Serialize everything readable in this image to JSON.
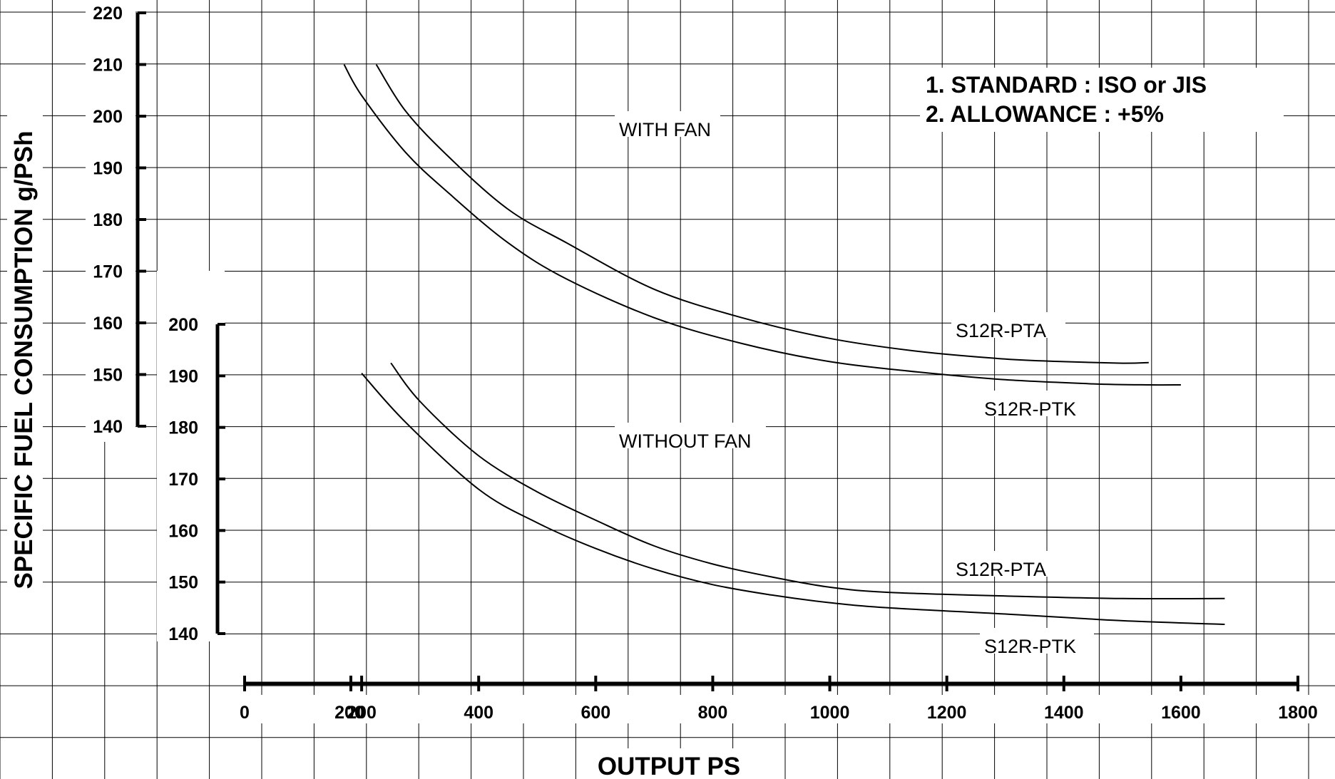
{
  "chart_data": {
    "type": "line",
    "xlabel": "OUTPUT PS",
    "ylabel": "SPECIFIC FUEL CONSUMPTION g/PSh",
    "xlim": [
      0,
      1800
    ],
    "x_ticks": [
      0,
      200,
      400,
      600,
      800,
      1000,
      1200,
      1400,
      1600,
      1800
    ],
    "x_tick_labels": [
      "0",
      "200",
      "400",
      "600",
      "800",
      "1000",
      "1200",
      "1400",
      "1600",
      "1800"
    ],
    "x_overlap_label": "200",
    "upper_axis": {
      "ylim": [
        140,
        220
      ],
      "ticks": [
        140,
        150,
        160,
        170,
        180,
        190,
        200,
        210,
        220
      ]
    },
    "lower_axis": {
      "ylim": [
        140,
        200
      ],
      "ticks": [
        140,
        150,
        160,
        170,
        180,
        190,
        200
      ]
    },
    "grid": true,
    "groups": [
      {
        "name": "WITH FAN",
        "axis": "upper",
        "series": [
          {
            "name": "S12R-PTA",
            "x": [
              225,
              275,
              350,
              450,
              550,
              700,
              850,
              1000,
              1150,
              1300,
              1400,
              1500,
              1545
            ],
            "y": [
              210,
              201,
              192,
              182,
              175.5,
              166.5,
              161,
              157,
              154.5,
              153,
              152.5,
              152.2,
              152.3
            ]
          },
          {
            "name": "S12R-PTK",
            "x": [
              170,
              200,
              275,
              350,
              450,
              550,
              700,
              850,
              1000,
              1150,
              1300,
              1450,
              1545,
              1600
            ],
            "y": [
              210,
              204,
              193,
              185,
              175.5,
              168.5,
              161,
              156,
              152.5,
              150.5,
              149,
              148.2,
              148,
              148
            ]
          }
        ]
      },
      {
        "name": "WITHOUT FAN",
        "axis": "lower",
        "series": [
          {
            "name": "S12R-PTA",
            "x": [
              250,
              300,
              400,
              500,
              600,
              700,
              800,
              900,
              1000,
              1100,
              1300,
              1500,
              1675
            ],
            "y": [
              192.5,
              185,
              174.5,
              167.5,
              162,
              157,
              153.5,
              151,
              149,
              148,
              147.3,
              146.8,
              146.8
            ]
          },
          {
            "name": "S12R-PTK",
            "x": [
              200,
              275,
              400,
              500,
              600,
              700,
              800,
              900,
              1000,
              1100,
              1300,
              1500,
              1675
            ],
            "y": [
              190.5,
              181,
              168,
              161.5,
              156.5,
              152.5,
              149.5,
              147.5,
              146,
              145,
              143.8,
              142.5,
              141.8
            ]
          }
        ]
      }
    ],
    "annotations": [
      "1. STANDARD   : ISO or JIS",
      "2. ALLOWANCE : +5%"
    ]
  }
}
